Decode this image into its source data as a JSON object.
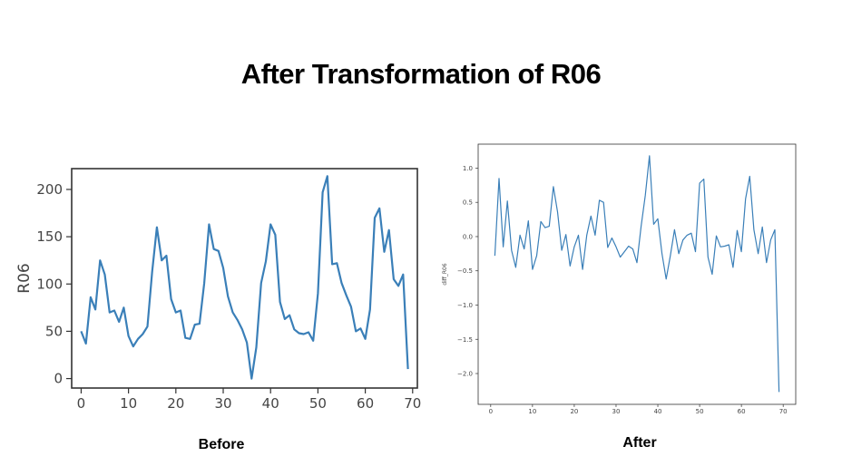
{
  "page": {
    "title": "After Transformation of R06",
    "before_label": "Before",
    "after_label": "After"
  },
  "colors": {
    "line": "#3a7fb8",
    "axis": "#333333"
  },
  "chart_data": [
    {
      "type": "line",
      "title": "",
      "xlabel": "",
      "ylabel": "R06",
      "xlim": [
        -2,
        71
      ],
      "ylim": [
        -10,
        222
      ],
      "xticks": [
        0,
        10,
        20,
        30,
        40,
        50,
        60,
        70
      ],
      "yticks": [
        0,
        50,
        100,
        150,
        200
      ],
      "x": [
        0,
        1,
        2,
        3,
        4,
        5,
        6,
        7,
        8,
        9,
        10,
        11,
        12,
        13,
        14,
        15,
        16,
        17,
        18,
        19,
        20,
        21,
        22,
        23,
        24,
        25,
        26,
        27,
        28,
        29,
        30,
        31,
        32,
        33,
        34,
        35,
        36,
        37,
        38,
        39,
        40,
        41,
        42,
        43,
        44,
        45,
        46,
        47,
        48,
        49,
        50,
        51,
        52,
        53,
        54,
        55,
        56,
        57,
        58,
        59,
        60,
        61,
        62,
        63,
        64,
        65,
        66,
        67,
        68,
        69
      ],
      "values": [
        50,
        37,
        86,
        73,
        125,
        110,
        70,
        72,
        60,
        75,
        45,
        34,
        42,
        47,
        55,
        113,
        160,
        125,
        130,
        84,
        70,
        72,
        43,
        42,
        57,
        58,
        101,
        163,
        137,
        135,
        117,
        87,
        70,
        62,
        52,
        38,
        0,
        33,
        101,
        124,
        163,
        152,
        81,
        63,
        67,
        52,
        48,
        47,
        49,
        40,
        90,
        197,
        214,
        121,
        122,
        101,
        88,
        76,
        50,
        53,
        42,
        73,
        170,
        180,
        134,
        157,
        105,
        98,
        110,
        10
      ],
      "grid": false
    },
    {
      "type": "line",
      "title": "",
      "xlabel": "",
      "ylabel": "diff_R06",
      "xlim": [
        -3,
        73
      ],
      "ylim": [
        -2.45,
        1.35
      ],
      "xticks": [
        0,
        10,
        20,
        30,
        40,
        50,
        60,
        70
      ],
      "xtick_labels": [
        "0",
        "10",
        "20",
        "30",
        "40",
        "50",
        "60",
        "70"
      ],
      "yticks": [
        1.0,
        0.5,
        0.0,
        -0.5,
        -1.0,
        -1.5,
        -2.0
      ],
      "ytick_labels": [
        "1.0",
        "0.5",
        "0.0",
        "−0.5",
        "−1.0",
        "−1.5",
        "−2.0"
      ],
      "x": [
        1,
        2,
        3,
        4,
        5,
        6,
        7,
        8,
        9,
        10,
        11,
        12,
        13,
        14,
        15,
        16,
        17,
        18,
        19,
        20,
        21,
        22,
        23,
        24,
        25,
        26,
        27,
        28,
        29,
        30,
        31,
        32,
        33,
        34,
        35,
        36,
        37,
        38,
        39,
        40,
        41,
        42,
        43,
        44,
        45,
        46,
        47,
        48,
        49,
        50,
        51,
        52,
        53,
        54,
        55,
        56,
        57,
        58,
        59,
        60,
        61,
        62,
        63,
        64,
        65,
        66,
        67,
        68,
        69
      ],
      "values": [
        -0.28,
        0.85,
        -0.15,
        0.52,
        -0.2,
        -0.45,
        0.02,
        -0.18,
        0.23,
        -0.48,
        -0.28,
        0.22,
        0.13,
        0.15,
        0.73,
        0.36,
        -0.2,
        0.03,
        -0.43,
        -0.15,
        0.02,
        -0.48,
        0.02,
        0.3,
        0.02,
        0.53,
        0.5,
        -0.16,
        -0.02,
        -0.15,
        -0.3,
        -0.22,
        -0.14,
        -0.18,
        -0.38,
        0.15,
        0.6,
        1.18,
        0.18,
        0.26,
        -0.25,
        -0.62,
        -0.28,
        0.1,
        -0.25,
        -0.05,
        0.02,
        0.05,
        -0.22,
        0.78,
        0.84,
        -0.3,
        -0.55,
        0.01,
        -0.15,
        -0.14,
        -0.12,
        -0.45,
        0.09,
        -0.22,
        0.55,
        0.88,
        0.1,
        -0.25,
        0.14,
        -0.38,
        -0.05,
        0.1,
        -2.27
      ],
      "grid": false
    }
  ]
}
